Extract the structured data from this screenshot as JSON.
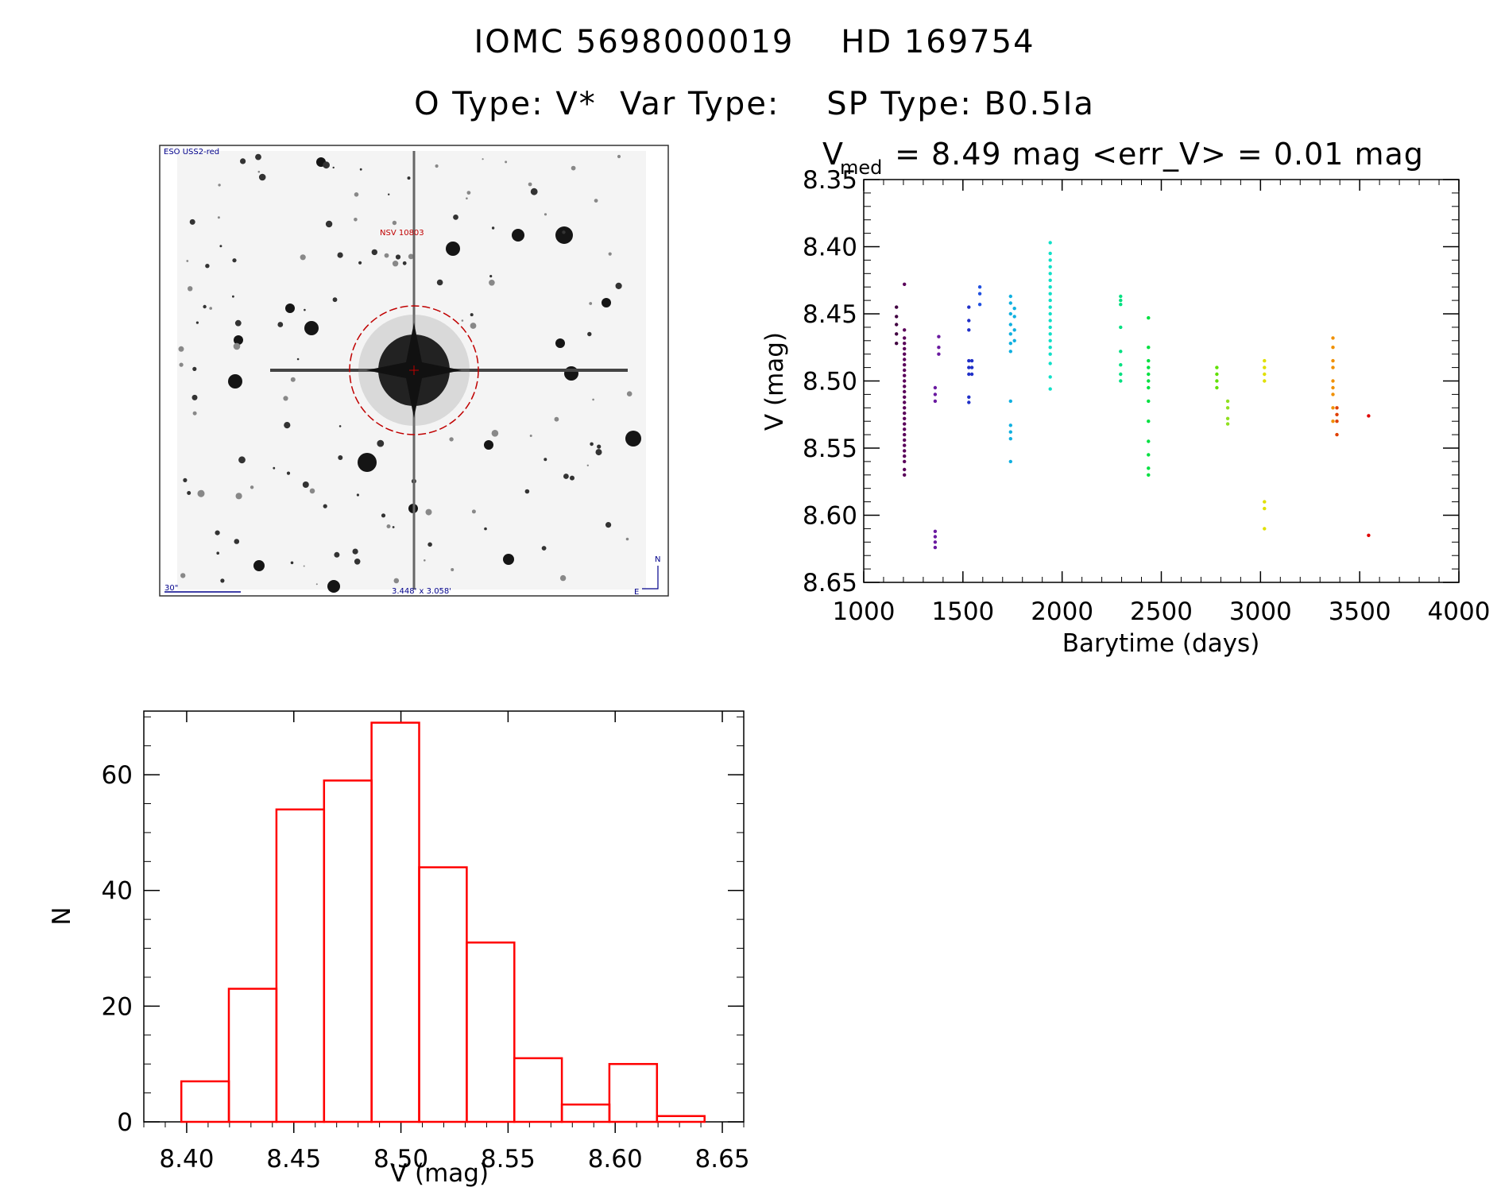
{
  "header": {
    "line1": "IOMC 5698000019    HD 169754",
    "line2": "O Type: V*  Var Type:    SP Type: B0.5Ia"
  },
  "finder_image": {
    "survey_label": "ESO USS2-red",
    "target_label": "NSV 10803",
    "scale_label": "30\"",
    "fov_label": "3.448' x 3.058'",
    "north_label": "N",
    "east_label": "E"
  },
  "chart_data": [
    {
      "type": "scatter",
      "title": "V_med = 8.49 mag <err_V> = 0.01 mag",
      "title_parts": {
        "v": "V",
        "sub": "med",
        "rest": " = 8.49 mag <err_V> = 0.01 mag"
      },
      "xlabel": "Barytime (days)",
      "ylabel": "V (mag)",
      "xlim": [
        1000,
        4000
      ],
      "ylim": [
        8.65,
        8.35
      ],
      "y_inverted": true,
      "xticks": [
        1000,
        1500,
        2000,
        2500,
        3000,
        3500,
        4000
      ],
      "yticks": [
        "8.35",
        "8.40",
        "8.45",
        "8.50",
        "8.55",
        "8.60",
        "8.65"
      ],
      "groups": [
        {
          "x": 1165,
          "color": "#400040",
          "y": [
            8.445,
            8.452,
            8.458,
            8.465,
            8.472
          ]
        },
        {
          "x": 1205,
          "color": "#5a005a",
          "y": [
            8.428,
            8.462,
            8.468,
            8.472,
            8.476,
            8.48,
            8.484,
            8.488,
            8.492,
            8.496,
            8.5,
            8.504,
            8.508,
            8.512,
            8.516,
            8.52,
            8.524,
            8.528,
            8.532,
            8.536,
            8.54,
            8.544,
            8.548,
            8.552,
            8.556,
            8.56,
            8.566,
            8.57
          ]
        },
        {
          "x": 1360,
          "color": "#6a1aa0",
          "y": [
            8.505,
            8.51,
            8.515,
            8.612,
            8.616,
            8.62,
            8.624
          ]
        },
        {
          "x": 1378,
          "color": "#6a1aa0",
          "y": [
            8.467,
            8.475,
            8.48
          ]
        },
        {
          "x": 1530,
          "color": "#2030c8",
          "y": [
            8.445,
            8.455,
            8.462,
            8.485,
            8.49,
            8.495,
            8.512,
            8.516
          ]
        },
        {
          "x": 1545,
          "color": "#2030c8",
          "y": [
            8.485,
            8.49,
            8.495
          ]
        },
        {
          "x": 1585,
          "color": "#2050e0",
          "y": [
            8.43,
            8.435,
            8.443
          ]
        },
        {
          "x": 1740,
          "color": "#10b0e0",
          "y": [
            8.437,
            8.442,
            8.45,
            8.458,
            8.465,
            8.472,
            8.478,
            8.515,
            8.533,
            8.538,
            8.543,
            8.56
          ]
        },
        {
          "x": 1760,
          "color": "#10b0e0",
          "y": [
            8.446,
            8.452,
            8.462,
            8.47
          ]
        },
        {
          "x": 1940,
          "color": "#10e0c8",
          "y": [
            8.397,
            8.405,
            8.41,
            8.415,
            8.42,
            8.425,
            8.43,
            8.435,
            8.44,
            8.445,
            8.45,
            8.455,
            8.46,
            8.465,
            8.47,
            8.475,
            8.48,
            8.487,
            8.497,
            8.506
          ]
        },
        {
          "x": 2295,
          "color": "#00e080",
          "y": [
            8.437,
            8.44,
            8.443,
            8.46,
            8.478,
            8.488,
            8.495,
            8.5
          ]
        },
        {
          "x": 2435,
          "color": "#00e040",
          "y": [
            8.453,
            8.475,
            8.485,
            8.49,
            8.495,
            8.5,
            8.505,
            8.515,
            8.53,
            8.545,
            8.555,
            8.565,
            8.57
          ]
        },
        {
          "x": 2780,
          "color": "#60e000",
          "y": [
            8.49,
            8.495,
            8.5,
            8.505
          ]
        },
        {
          "x": 2835,
          "color": "#90e020",
          "y": [
            8.515,
            8.52,
            8.528,
            8.532
          ]
        },
        {
          "x": 3020,
          "color": "#e0e000",
          "y": [
            8.485,
            8.49,
            8.495,
            8.5,
            8.59,
            8.595,
            8.61
          ]
        },
        {
          "x": 3365,
          "color": "#f09000",
          "y": [
            8.468,
            8.475,
            8.485,
            8.49,
            8.5,
            8.505,
            8.51,
            8.52,
            8.53
          ]
        },
        {
          "x": 3385,
          "color": "#e04000",
          "y": [
            8.52,
            8.525,
            8.53,
            8.54
          ]
        },
        {
          "x": 3545,
          "color": "#e00000",
          "y": [
            8.526,
            8.615
          ]
        }
      ]
    },
    {
      "type": "bar",
      "subtype": "histogram",
      "xlabel": "V (mag)",
      "ylabel": "N",
      "xlim": [
        8.38,
        8.66
      ],
      "ylim": [
        0,
        71
      ],
      "xticks": [
        "8.40",
        "8.45",
        "8.50",
        "8.55",
        "8.60",
        "8.65"
      ],
      "yticks": [
        0,
        20,
        40,
        60
      ],
      "bin_width": 0.0222,
      "bin_starts": [
        8.3975,
        8.4197,
        8.4419,
        8.4641,
        8.4863,
        8.5085,
        8.5307,
        8.5529,
        8.5751,
        8.5973,
        8.6195
      ],
      "values": [
        7,
        23,
        54,
        59,
        69,
        44,
        31,
        11,
        3,
        10,
        1
      ],
      "color": "#ff0000"
    }
  ]
}
